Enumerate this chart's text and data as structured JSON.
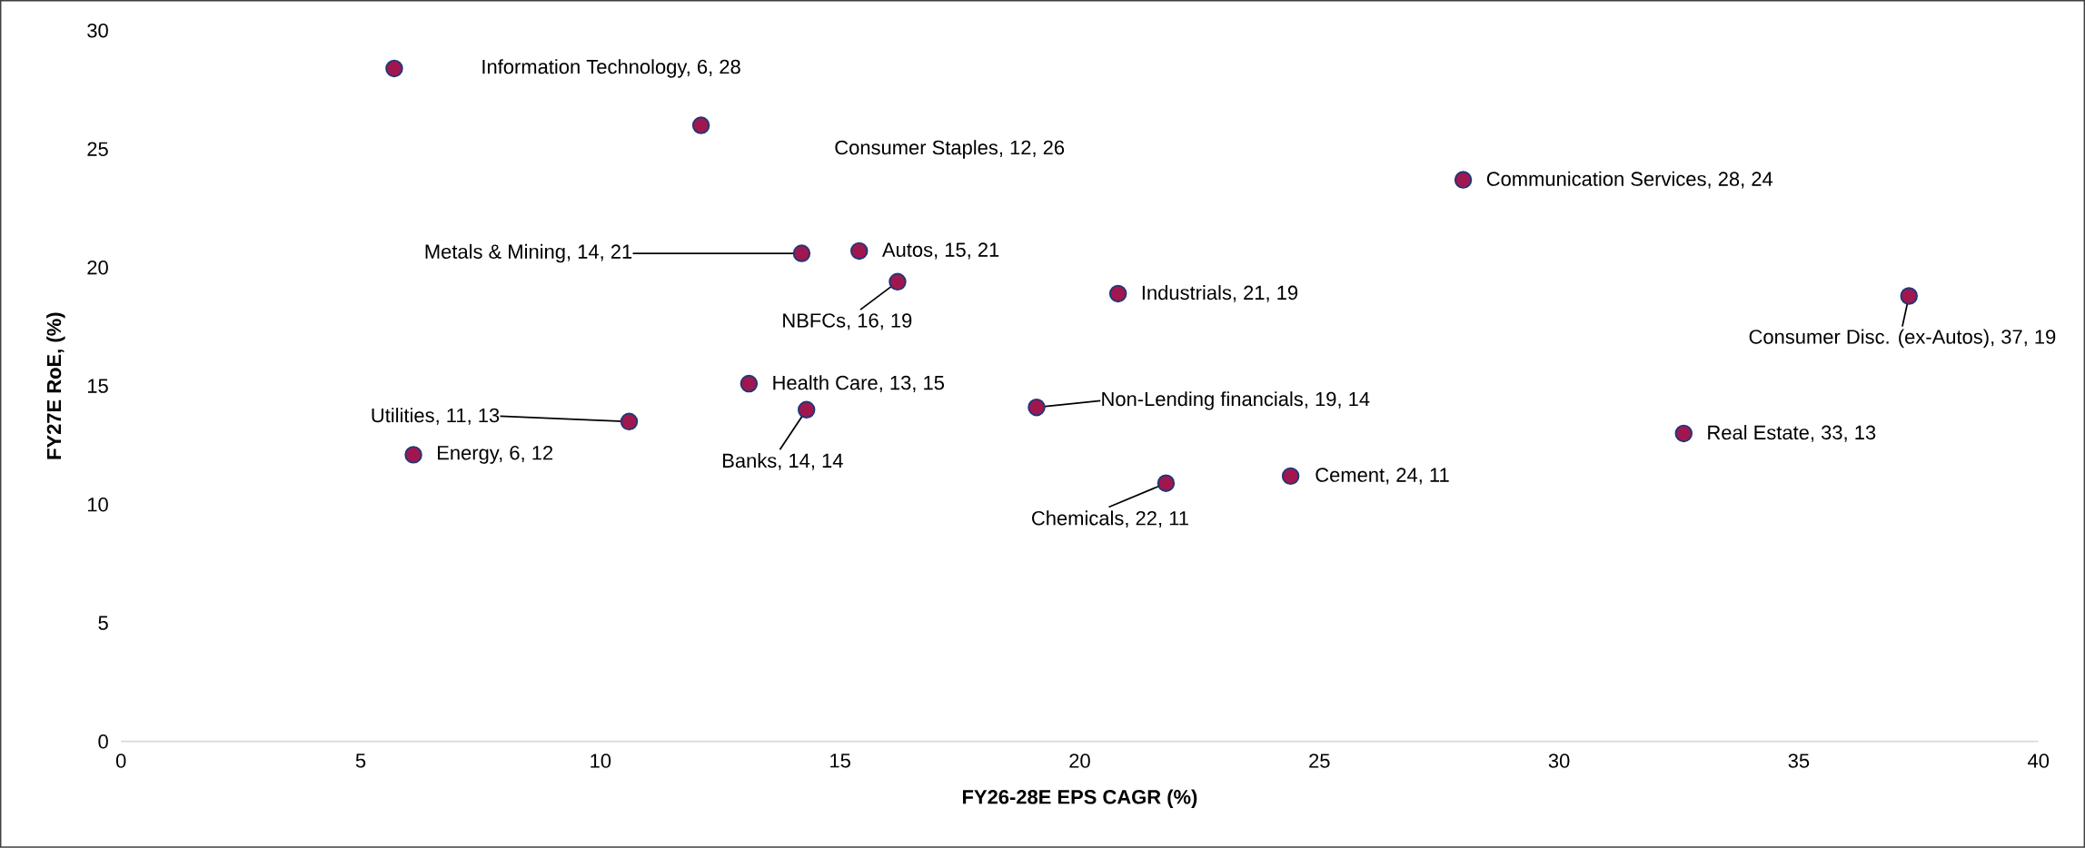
{
  "chart_data": {
    "type": "scatter",
    "xlabel": "FY26-28E EPS CAGR (%)",
    "ylabel": "FY27E RoE, (%)",
    "x": [
      5.7,
      12.1,
      28.0,
      14.2,
      15.4,
      16.2,
      20.8,
      37.3,
      13.1,
      14.3,
      19.1,
      10.6,
      6.1,
      32.6,
      24.4,
      21.8
    ],
    "values": [
      28.4,
      26.0,
      23.7,
      20.6,
      20.7,
      19.4,
      18.9,
      18.8,
      15.1,
      14.0,
      14.1,
      13.5,
      12.1,
      13.0,
      11.2,
      10.9
    ],
    "color": "#a0174f",
    "xlim": [
      0,
      40
    ],
    "xticks": [
      0,
      5,
      10,
      15,
      20,
      25,
      30,
      35,
      40
    ],
    "ylim": [
      0,
      30
    ],
    "yticks": [
      0,
      5,
      10,
      15,
      20,
      25,
      30
    ],
    "grid": false,
    "annotations": [
      "Information Technology, 6, 28",
      "Consumer Staples, 12, 26",
      {
        "text": "Communication Services, 28, 24",
        "x": 28.0,
        "y": 23.7
      },
      {
        "text": "Metals & Mining, 14, 21",
        "x": 14.2,
        "y": 20.6
      },
      {
        "text": "Autos, 15, 21",
        "x": 15.4,
        "y": 20.7
      },
      {
        "text": "NBFCs, 16, 19",
        "x": 16.2,
        "y": 19.4
      },
      {
        "text": "Industrials, 21, 19",
        "x": 20.8,
        "y": 18.9
      },
      {
        "text": "Consumer Disc. (ex-Autos), 37, 19",
        "x": 37.3,
        "y": 18.8
      },
      {
        "text": "Health Care, 13, 15",
        "x": 13.1,
        "y": 15.1
      },
      {
        "text": "Banks, 14, 14",
        "x": 14.3,
        "y": 14.0
      },
      {
        "text": "Non-Lending financials, 19, 14",
        "x": 19.1,
        "y": 14.1
      },
      {
        "text": "Utilities, 11, 13",
        "x": 10.6,
        "y": 13.5
      },
      {
        "text": "Energy, 6, 12",
        "x": 6.1,
        "y": 12.1
      },
      {
        "text": "Real Estate, 33, 13",
        "x": 32.6,
        "y": 13.0
      },
      {
        "text": "Cement, 24, 11",
        "x": 24.4,
        "y": 11.2
      },
      {
        "text": "Chemicals, 22, 11",
        "x": 21.8,
        "y": 10.9
      }
    ]
  }
}
